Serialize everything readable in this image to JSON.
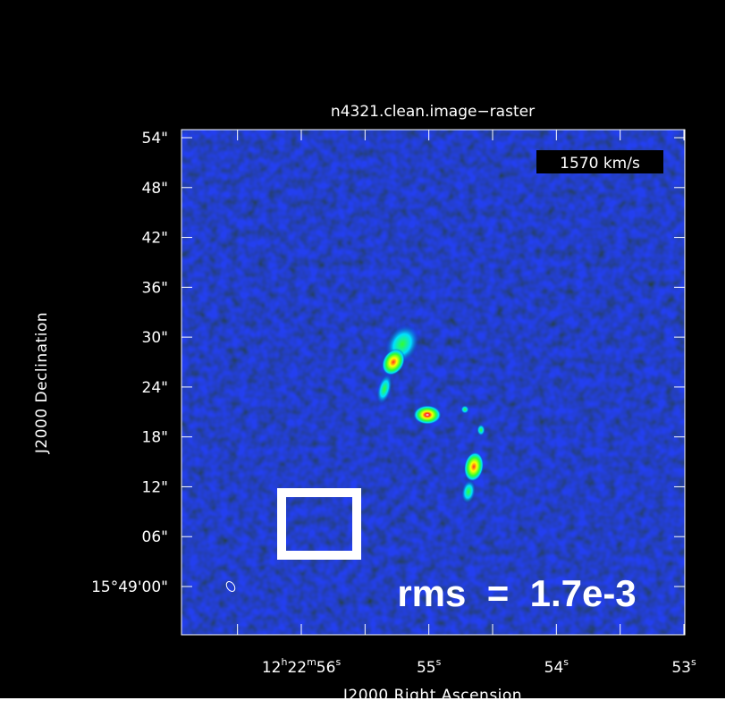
{
  "title": "n4321.clean.image−raster",
  "velocity_label": "1570 km/s",
  "rms_label": "rms  =  1.7e-3",
  "xlabel": "J2000 Right Ascension",
  "ylabel": "J2000 Declination",
  "dec_ticks": [
    {
      "text": "54\"",
      "arcsec": 54
    },
    {
      "text": "48\"",
      "arcsec": 48
    },
    {
      "text": "42\"",
      "arcsec": 42
    },
    {
      "text": "36\"",
      "arcsec": 36
    },
    {
      "text": "30\"",
      "arcsec": 30
    },
    {
      "text": "24\"",
      "arcsec": 24
    },
    {
      "text": "18\"",
      "arcsec": 18
    },
    {
      "text": "12\"",
      "arcsec": 12
    },
    {
      "text": "06\"",
      "arcsec": 6
    },
    {
      "text": "15°49'00\"",
      "arcsec": 0
    }
  ],
  "ra_ticks": [
    {
      "h": "12",
      "m": "22",
      "s": "56",
      "sec": 56
    },
    {
      "s": "55",
      "sec": 55
    },
    {
      "s": "54",
      "sec": 54
    },
    {
      "s": "53",
      "sec": 53
    }
  ],
  "colors": {
    "background": "#000000",
    "frame": "#ffffff",
    "noise_low": "#00005a",
    "noise_mid": "#0a24b4",
    "emission_cyan": "#00e0ff",
    "emission_green": "#30ff30",
    "emission_yellow": "#ffff00",
    "emission_red": "#ff2020",
    "emission_white": "#ffffff"
  }
}
